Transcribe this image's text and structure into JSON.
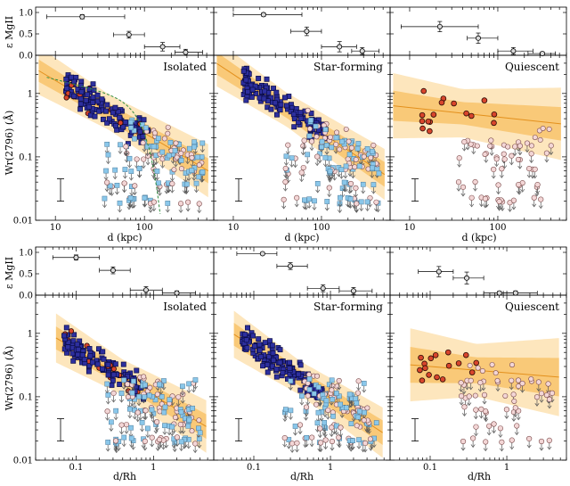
{
  "figure": {
    "ylabel_top": "ε MgII",
    "ylabel_main": "Wr(2796) (Å)",
    "xlabel_top_rows": "d (kpc)",
    "xlabel_bottom_rows": "d/Rh",
    "colors": {
      "isolated_detect": "#2d2f9e",
      "isolated_edge": "#0b0c4a",
      "nondetect": "#f3d6d6",
      "upper_limit_sq": "#8ac7ea",
      "quiescent_detect": "#d8452c",
      "band_outer": "#fde6bd",
      "band_inner": "#f9c978",
      "fit_line": "#e3901c",
      "nfw_curve": "#2e8b3e"
    }
  },
  "chart_data": [
    {
      "type": "scatter",
      "row": "top",
      "panel": "Isolated",
      "title": "Isolated",
      "xlabel": "d (kpc)",
      "ylabel": "Wr(2796) (Å)",
      "xscale": "log",
      "xlim": [
        6,
        600
      ],
      "yscale": "log",
      "ylim": [
        0.01,
        4
      ],
      "xticks": [
        "10",
        "100"
      ],
      "yticks": [
        "0.01",
        "0.1",
        "1"
      ],
      "fit": {
        "amp_at_10": 1.6,
        "slope": -0.83,
        "band_inner": 1.35,
        "band_outer": 1.9
      },
      "covering_fraction": {
        "ylim": [
          0,
          1
        ],
        "yticks": [
          "0.0",
          "0.5",
          "1.0"
        ],
        "points": [
          {
            "x": 20,
            "y": 0.9,
            "xerr": [
              8,
              60
            ],
            "yerr": 0.05
          },
          {
            "x": 67,
            "y": 0.48,
            "xerr": [
              45,
              100
            ],
            "yerr": 0.08
          },
          {
            "x": 160,
            "y": 0.2,
            "xerr": [
              100,
              250
            ],
            "yerr": 0.1
          },
          {
            "x": 290,
            "y": 0.07,
            "xerr": [
              220,
              450
            ],
            "yerr": 0.07
          }
        ]
      }
    },
    {
      "type": "scatter",
      "row": "top",
      "panel": "Star-forming",
      "title": "Star-forming",
      "xlabel": "d (kpc)",
      "xscale": "log",
      "xlim": [
        6,
        600
      ],
      "yscale": "log",
      "ylim": [
        0.01,
        4
      ],
      "xticks": [
        "10",
        "100"
      ],
      "fit": {
        "amp_at_10": 2.0,
        "slope": -0.92,
        "band_inner": 1.35,
        "band_outer": 1.85
      },
      "covering_fraction": {
        "ylim": [
          0,
          1
        ],
        "points": [
          {
            "x": 22,
            "y": 0.95,
            "xerr": [
              10,
              60
            ],
            "yerr": 0.04
          },
          {
            "x": 68,
            "y": 0.56,
            "xerr": [
              45,
              100
            ],
            "yerr": 0.1
          },
          {
            "x": 160,
            "y": 0.2,
            "xerr": [
              100,
              250
            ],
            "yerr": 0.12
          },
          {
            "x": 290,
            "y": 0.1,
            "xerr": [
              220,
              450
            ],
            "yerr": 0.08
          }
        ]
      }
    },
    {
      "type": "scatter",
      "row": "top",
      "panel": "Quiescent",
      "title": "Quiescent",
      "xlabel": "d (kpc)",
      "xscale": "log",
      "xlim": [
        6,
        600
      ],
      "yscale": "log",
      "ylim": [
        0.01,
        4
      ],
      "xticks": [
        "10",
        "100"
      ],
      "fit": {
        "amp_at_10": 0.6,
        "slope": -0.15,
        "band_inner": 1.5,
        "band_outer": 2.4
      },
      "covering_fraction": {
        "ylim": [
          0,
          1
        ],
        "points": [
          {
            "x": 22,
            "y": 0.67,
            "xerr": [
              8,
              60
            ],
            "yerr": 0.12
          },
          {
            "x": 60,
            "y": 0.4,
            "xerr": [
              45,
              100
            ],
            "yerr": 0.12
          },
          {
            "x": 150,
            "y": 0.1,
            "xerr": [
              100,
              250
            ],
            "yerr": 0.08
          },
          {
            "x": 320,
            "y": 0.04,
            "xerr": [
              220,
              450
            ],
            "yerr": 0.04
          }
        ]
      }
    },
    {
      "type": "scatter",
      "row": "bottom",
      "panel": "Isolated",
      "title": "Isolated",
      "xlabel": "d/Rh",
      "ylabel": "Wr(2796) (Å)",
      "xscale": "log",
      "xlim": [
        0.03,
        6
      ],
      "yscale": "log",
      "ylim": [
        0.01,
        4
      ],
      "xticks": [
        "0.1",
        "1"
      ],
      "yticks": [
        "0.01",
        "0.1",
        "1"
      ],
      "fit": {
        "amp_at_10": 0.55,
        "slope": -0.72,
        "band_inner": 1.35,
        "band_outer": 1.9
      },
      "covering_fraction": {
        "ylim": [
          0,
          1
        ],
        "yticks": [
          "0.0",
          "0.5",
          "1.0"
        ],
        "points": [
          {
            "x": 0.1,
            "y": 0.88,
            "xerr": [
              0.05,
              0.2
            ],
            "yerr": 0.06
          },
          {
            "x": 0.3,
            "y": 0.58,
            "xerr": [
              0.2,
              0.5
            ],
            "yerr": 0.08
          },
          {
            "x": 0.8,
            "y": 0.12,
            "xerr": [
              0.5,
              1.3
            ],
            "yerr": 0.08
          },
          {
            "x": 2.0,
            "y": 0.05,
            "xerr": [
              1.3,
              3.5
            ],
            "yerr": 0.05
          }
        ]
      }
    },
    {
      "type": "scatter",
      "row": "bottom",
      "panel": "Star-forming",
      "title": "Star-forming",
      "xlabel": "d/Rh",
      "xscale": "log",
      "xlim": [
        0.03,
        6
      ],
      "yscale": "log",
      "ylim": [
        0.01,
        4
      ],
      "xticks": [
        "0.1",
        "1"
      ],
      "fit": {
        "amp_at_10": 0.6,
        "slope": -0.8,
        "band_inner": 1.35,
        "band_outer": 1.85
      },
      "covering_fraction": {
        "ylim": [
          0,
          1
        ],
        "points": [
          {
            "x": 0.13,
            "y": 0.97,
            "xerr": [
              0.06,
              0.2
            ],
            "yerr": 0.03
          },
          {
            "x": 0.3,
            "y": 0.68,
            "xerr": [
              0.2,
              0.5
            ],
            "yerr": 0.08
          },
          {
            "x": 0.8,
            "y": 0.16,
            "xerr": [
              0.5,
              1.3
            ],
            "yerr": 0.08
          },
          {
            "x": 2.0,
            "y": 0.1,
            "xerr": [
              1.3,
              3.5
            ],
            "yerr": 0.08
          }
        ]
      }
    },
    {
      "type": "scatter",
      "row": "bottom",
      "panel": "Quiescent",
      "title": "Quiescent",
      "xlabel": "d/Rh",
      "xscale": "log",
      "xlim": [
        0.03,
        6
      ],
      "yscale": "log",
      "ylim": [
        0.01,
        4
      ],
      "xticks": [
        "0.1",
        "1"
      ],
      "fit": {
        "amp_at_10": 0.3,
        "slope": -0.1,
        "band_inner": 1.6,
        "band_outer": 2.6
      },
      "covering_fraction": {
        "ylim": [
          0,
          1
        ],
        "points": [
          {
            "x": 0.13,
            "y": 0.55,
            "xerr": [
              0.07,
              0.2
            ],
            "yerr": 0.12
          },
          {
            "x": 0.3,
            "y": 0.4,
            "xerr": [
              0.2,
              0.5
            ],
            "yerr": 0.14
          },
          {
            "x": 0.8,
            "y": 0.05,
            "xerr": [
              0.5,
              1.3
            ],
            "yerr": 0.04
          },
          {
            "x": 1.3,
            "y": 0.05,
            "xerr": [
              0.9,
              2.5
            ],
            "yerr": 0.05
          }
        ]
      }
    }
  ]
}
